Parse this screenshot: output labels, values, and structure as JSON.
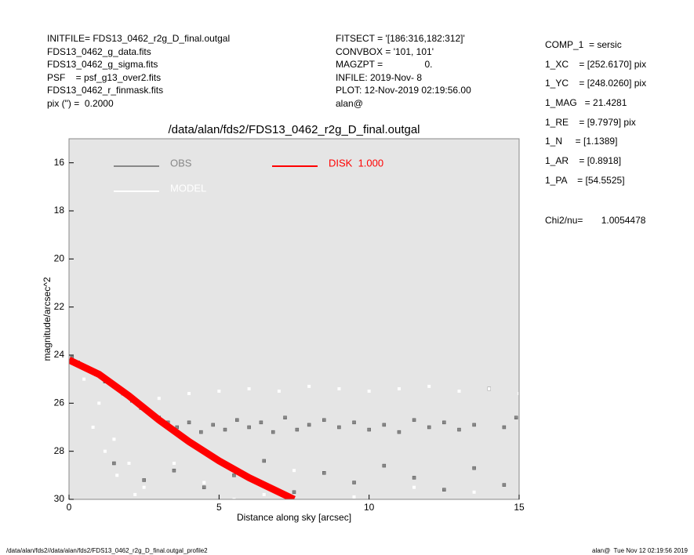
{
  "header": {
    "left": [
      "INITFILE= FDS13_0462_r2g_D_final.outgal",
      "FDS13_0462_g_data.fits",
      "FDS13_0462_g_sigma.fits",
      "PSF    = psf_g13_over2.fits",
      "FDS13_0462_r_finmask.fits",
      "pix (\") =  0.2000"
    ],
    "middle": [
      "FITSECT = '[186:316,182:312]'",
      "CONVBOX = '101, 101'",
      "MAGZPT =                0.",
      "INFILE: 2019-Nov- 8",
      "PLOT: 12-Nov-2019 02:19:56.00",
      "alan@"
    ],
    "right": [
      "COMP_1  = sersic",
      "1_XC    = [252.6170] pix",
      "1_YC    = [248.0260] pix",
      "1_MAG   = 21.4281",
      "1_RE    = [9.7979] pix",
      "1_N     = [1.1389]",
      "1_AR    = [0.8918]",
      "1_PA    = [54.5525]"
    ],
    "chi2": "Chi2/nu=       1.0054478"
  },
  "footer": {
    "left": "/data/alan/fds2//data/alan/fds2/FDS13_0462_r2g_D_final.outgal_profile2",
    "right": "alan@  Tue Nov 12 02:19:56 2019"
  },
  "chart_data": {
    "type": "scatter",
    "title": "/data/alan/fds2/FDS13_0462_r2g_D_final.outgal",
    "xlabel": "Distance along sky [arcsec]",
    "ylabel": "magnitude/arcsec^2",
    "xlim": [
      0,
      15
    ],
    "ylim": [
      30,
      15
    ],
    "xticks": [
      0,
      5,
      10,
      15
    ],
    "yticks": [
      16,
      18,
      20,
      22,
      24,
      26,
      28,
      30
    ],
    "background": "#e5e5e5",
    "series": [
      {
        "name": "OBS",
        "color": "#888888",
        "mode": "points",
        "x": [
          0.1,
          0.3,
          0.6,
          0.9,
          1.2,
          1.5,
          1.8,
          2.1,
          2.4,
          2.7,
          3.0,
          3.3,
          3.6,
          4.0,
          4.4,
          4.8,
          5.2,
          5.6,
          6.0,
          6.4,
          6.8,
          7.2,
          7.6,
          8.0,
          8.5,
          9.0,
          9.5,
          10.0,
          10.5,
          11.0,
          11.5,
          12.0,
          12.5,
          13.0,
          13.5,
          14.0,
          14.5,
          14.9,
          1.5,
          2.5,
          3.5,
          4.5,
          5.5,
          6.5,
          7.5,
          8.5,
          9.5,
          10.5,
          11.5,
          12.5,
          13.5,
          14.5
        ],
        "values": [
          24.1,
          24.3,
          24.5,
          24.8,
          25.1,
          25.3,
          25.6,
          25.9,
          26.2,
          26.4,
          26.6,
          26.8,
          27.0,
          26.8,
          27.2,
          26.9,
          27.1,
          26.7,
          27.0,
          26.8,
          27.2,
          26.6,
          27.1,
          26.9,
          26.7,
          27.0,
          26.8,
          27.1,
          26.9,
          27.2,
          26.7,
          27.0,
          26.8,
          27.1,
          26.9,
          25.4,
          27.0,
          26.6,
          28.5,
          29.2,
          28.8,
          29.5,
          29.0,
          28.4,
          29.7,
          28.9,
          29.3,
          28.6,
          29.1,
          29.6,
          28.7,
          29.4
        ]
      },
      {
        "name": "MODEL",
        "color": "#ffffff",
        "mode": "points",
        "x": [
          0.5,
          1.0,
          1.5,
          2.0,
          2.5,
          3.0,
          4.0,
          5.0,
          6.0,
          7.0,
          8.0,
          9.0,
          10.0,
          11.0,
          12.0,
          13.0,
          14.0,
          15.0,
          0.8,
          1.2,
          1.6,
          2.2,
          3.5,
          4.5,
          5.5,
          6.5,
          7.5,
          9.5,
          11.5,
          13.5
        ],
        "values": [
          25.0,
          26.0,
          27.5,
          28.5,
          29.5,
          25.8,
          25.6,
          25.5,
          25.4,
          25.5,
          25.3,
          25.4,
          25.5,
          25.4,
          25.3,
          25.5,
          25.4,
          25.6,
          27.0,
          28.0,
          29.0,
          29.8,
          28.5,
          29.3,
          30.0,
          29.8,
          28.8,
          29.9,
          29.5,
          29.7
        ]
      },
      {
        "name": "DISK  1.000",
        "color": "#ff0000",
        "mode": "line",
        "x": [
          0,
          1,
          2,
          3,
          4,
          5,
          6,
          7,
          7.5
        ],
        "values": [
          24.2,
          24.8,
          25.7,
          26.7,
          27.6,
          28.4,
          29.1,
          29.7,
          30.0
        ]
      }
    ]
  }
}
